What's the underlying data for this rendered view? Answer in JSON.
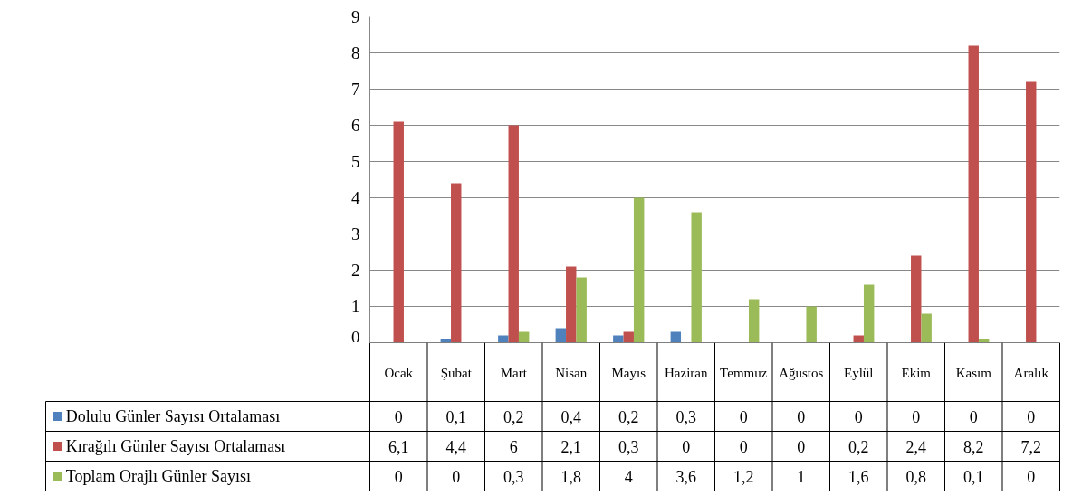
{
  "chart_data": {
    "type": "bar",
    "categories": [
      "Ocak",
      "Şubat",
      "Mart",
      "Nisan",
      "Mayıs",
      "Haziran",
      "Temmuz",
      "Ağustos",
      "Eylül",
      "Ekim",
      "Kasım",
      "Aralık"
    ],
    "series": [
      {
        "name": "Dolulu Günler Sayısı Ortalaması",
        "color": "#4f81bd",
        "values": [
          0,
          0.1,
          0.2,
          0.4,
          0.2,
          0.3,
          0,
          0,
          0,
          0,
          0,
          0
        ],
        "value_labels": [
          "0",
          "0,1",
          "0,2",
          "0,4",
          "0,2",
          "0,3",
          "0",
          "0",
          "0",
          "0",
          "0",
          "0"
        ]
      },
      {
        "name": "Kırağılı Günler Sayısı Ortalaması",
        "color": "#c0504d",
        "values": [
          6.1,
          4.4,
          6,
          2.1,
          0.3,
          0,
          0,
          0,
          0.2,
          2.4,
          8.2,
          7.2
        ],
        "value_labels": [
          "6,1",
          "4,4",
          "6",
          "2,1",
          "0,3",
          "0",
          "0",
          "0",
          "0,2",
          "2,4",
          "8,2",
          "7,2"
        ]
      },
      {
        "name": "Toplam Orajlı Günler Sayısı",
        "color": "#9bbb59",
        "values": [
          0,
          0,
          0.3,
          1.8,
          4,
          3.6,
          1.2,
          1,
          1.6,
          0.8,
          0.1,
          0
        ],
        "value_labels": [
          "0",
          "0",
          "0,3",
          "1,8",
          "4",
          "3,6",
          "1,2",
          "1",
          "1,6",
          "0,8",
          "0,1",
          "0"
        ]
      }
    ],
    "ylim": [
      0,
      9
    ],
    "yticks": [
      0,
      1,
      2,
      3,
      4,
      5,
      6,
      7,
      8,
      9
    ],
    "grid": "y",
    "legend": "bottom",
    "data_labels": true
  }
}
